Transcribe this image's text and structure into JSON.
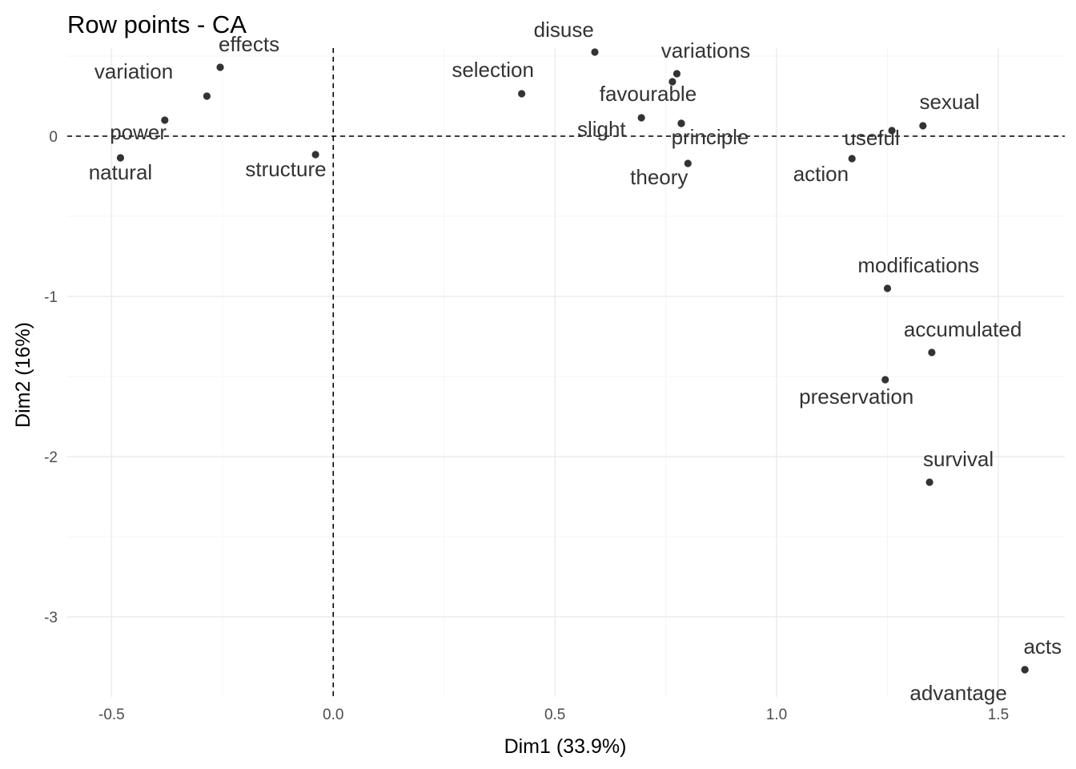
{
  "chart_data": {
    "type": "scatter",
    "title": "Row points - CA",
    "xlabel": "Dim1 (33.9%)",
    "ylabel": "Dim2 (16%)",
    "xlim": [
      -0.6,
      1.65
    ],
    "ylim": [
      -3.5,
      0.55
    ],
    "x_ticks": [
      -0.5,
      0.0,
      0.5,
      1.0,
      1.5
    ],
    "x_tick_labels": [
      "-0.5",
      "0.0",
      "0.5",
      "1.0",
      "1.5"
    ],
    "y_ticks": [
      0,
      -1,
      -2,
      -3
    ],
    "y_tick_labels": [
      "0",
      "-1",
      "-2",
      "-3"
    ],
    "x_minor_ticks": [
      -0.25,
      0.25,
      0.75,
      1.25
    ],
    "y_minor_ticks": [
      0.5,
      -0.5,
      -1.5,
      -2.5
    ],
    "reference_lines": {
      "x": 0,
      "y": 0
    },
    "grid": true,
    "point_color": "#333333",
    "points": [
      {
        "label": "effects",
        "x": -0.255,
        "y": 0.43
      },
      {
        "label": "variation",
        "x": -0.285,
        "y": 0.25
      },
      {
        "label": "power",
        "x": -0.38,
        "y": 0.1
      },
      {
        "label": "natural",
        "x": -0.48,
        "y": -0.135
      },
      {
        "label": "structure",
        "x": -0.04,
        "y": -0.115
      },
      {
        "label": "selection",
        "x": 0.425,
        "y": 0.265
      },
      {
        "label": "disuse",
        "x": 0.59,
        "y": 0.525
      },
      {
        "label": "variations",
        "x": 0.775,
        "y": 0.39
      },
      {
        "label": "variations",
        "x": 0.765,
        "y": 0.34,
        "hide_label": true
      },
      {
        "label": "favourable",
        "x": 0.695,
        "y": 0.115
      },
      {
        "label": "slight",
        "x": 0.785,
        "y": 0.08
      },
      {
        "label": "principle",
        "x": 0.785,
        "y": 0.08,
        "hide_label": true
      },
      {
        "label": "theory",
        "x": 0.8,
        "y": -0.17
      },
      {
        "label": "sexual",
        "x": 1.33,
        "y": 0.065
      },
      {
        "label": "useful",
        "x": 1.26,
        "y": 0.035
      },
      {
        "label": "action",
        "x": 1.17,
        "y": -0.14
      },
      {
        "label": "modifications",
        "x": 1.25,
        "y": -0.95
      },
      {
        "label": "accumulated",
        "x": 1.35,
        "y": -1.35
      },
      {
        "label": "preservation",
        "x": 1.245,
        "y": -1.52
      },
      {
        "label": "survival",
        "x": 1.345,
        "y": -2.16
      },
      {
        "label": "acts",
        "x": 1.56,
        "y": -3.33
      },
      {
        "label": "advantage",
        "x": 1.56,
        "y": -3.33,
        "hide_label": true
      }
    ],
    "labels": [
      {
        "text": "effects",
        "x": -0.19,
        "y": 0.53
      },
      {
        "text": "variation",
        "x": -0.45,
        "y": 0.36
      },
      {
        "text": "power",
        "x": -0.44,
        "y": -0.02
      },
      {
        "text": "natural",
        "x": -0.48,
        "y": -0.27
      },
      {
        "text": "structure",
        "x": -0.107,
        "y": -0.25
      },
      {
        "text": "selection",
        "x": 0.36,
        "y": 0.37
      },
      {
        "text": "disuse",
        "x": 0.52,
        "y": 0.62
      },
      {
        "text": "variations",
        "x": 0.84,
        "y": 0.49
      },
      {
        "text": "favourable",
        "x": 0.71,
        "y": 0.22
      },
      {
        "text": "slight",
        "x": 0.605,
        "y": 0.0
      },
      {
        "text": "principle",
        "x": 0.85,
        "y": -0.05
      },
      {
        "text": "theory",
        "x": 0.735,
        "y": -0.3
      },
      {
        "text": "sexual",
        "x": 1.39,
        "y": 0.17
      },
      {
        "text": "useful",
        "x": 1.215,
        "y": -0.055
      },
      {
        "text": "action",
        "x": 1.1,
        "y": -0.28
      },
      {
        "text": "modifications",
        "x": 1.32,
        "y": -0.85
      },
      {
        "text": "accumulated",
        "x": 1.42,
        "y": -1.25
      },
      {
        "text": "preservation",
        "x": 1.18,
        "y": -1.67
      },
      {
        "text": "survival",
        "x": 1.41,
        "y": -2.06
      },
      {
        "text": "acts",
        "x": 1.6,
        "y": -3.23
      },
      {
        "text": "advantage",
        "x": 1.41,
        "y": -3.52
      }
    ]
  }
}
